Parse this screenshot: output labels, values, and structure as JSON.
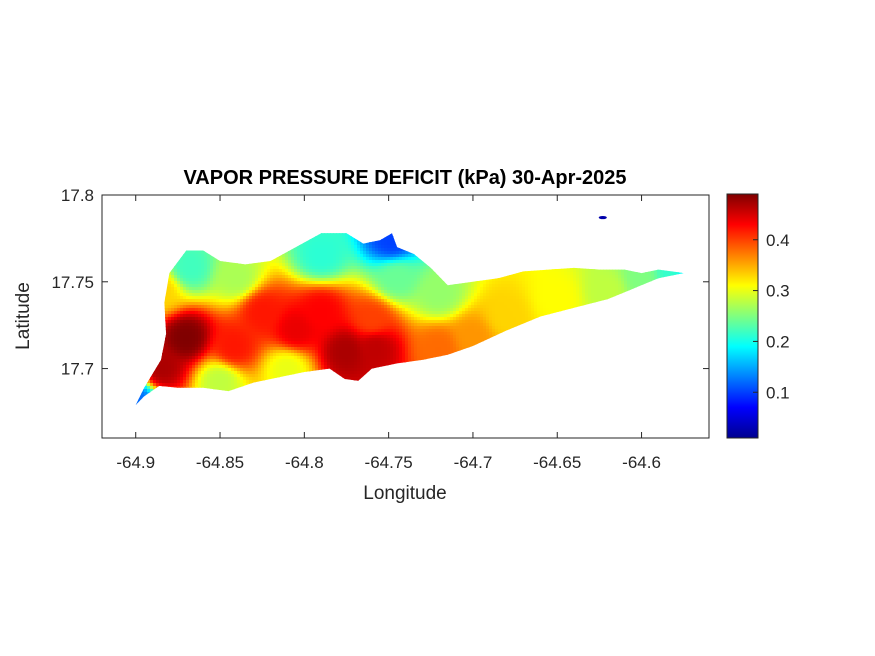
{
  "chart_data": {
    "type": "heatmap",
    "title": "VAPOR PRESSURE DEFICIT (kPa) 30-Apr-2025",
    "xlabel": "Longitude",
    "ylabel": "Latitude",
    "xlim": [
      -64.92,
      -64.56
    ],
    "ylim": [
      17.66,
      17.8
    ],
    "xticks": [
      -64.9,
      -64.85,
      -64.8,
      -64.75,
      -64.7,
      -64.65,
      -64.6
    ],
    "xtick_labels": [
      "-64.9",
      "-64.85",
      "-64.8",
      "-64.75",
      "-64.7",
      "-64.65",
      "-64.6"
    ],
    "yticks": [
      17.7,
      17.75,
      17.8
    ],
    "ytick_labels": [
      "17.7",
      "17.75",
      "17.8"
    ],
    "colorbar": {
      "colormap": "jet",
      "range": [
        0.01,
        0.49
      ],
      "ticks": [
        0.1,
        0.2,
        0.3,
        0.4
      ],
      "tick_labels": [
        "0.1",
        "0.2",
        "0.3",
        "0.4"
      ]
    },
    "grid": false,
    "island_outline": [
      [
        -64.88,
        17.755
      ],
      [
        -64.87,
        17.768
      ],
      [
        -64.86,
        17.768
      ],
      [
        -64.85,
        17.762
      ],
      [
        -64.835,
        17.76
      ],
      [
        -64.82,
        17.762
      ],
      [
        -64.805,
        17.77
      ],
      [
        -64.79,
        17.778
      ],
      [
        -64.775,
        17.778
      ],
      [
        -64.765,
        17.772
      ],
      [
        -64.755,
        17.774
      ],
      [
        -64.748,
        17.778
      ],
      [
        -64.745,
        17.77
      ],
      [
        -64.735,
        17.766
      ],
      [
        -64.725,
        17.758
      ],
      [
        -64.715,
        17.748
      ],
      [
        -64.7,
        17.75
      ],
      [
        -64.685,
        17.752
      ],
      [
        -64.67,
        17.756
      ],
      [
        -64.655,
        17.757
      ],
      [
        -64.64,
        17.758
      ],
      [
        -64.625,
        17.757
      ],
      [
        -64.61,
        17.757
      ],
      [
        -64.6,
        17.755
      ],
      [
        -64.59,
        17.757
      ],
      [
        -64.582,
        17.756
      ],
      [
        -64.575,
        17.755
      ],
      [
        -64.59,
        17.752
      ],
      [
        -64.605,
        17.746
      ],
      [
        -64.62,
        17.74
      ],
      [
        -64.64,
        17.735
      ],
      [
        -64.66,
        17.73
      ],
      [
        -64.68,
        17.722
      ],
      [
        -64.7,
        17.713
      ],
      [
        -64.715,
        17.708
      ],
      [
        -64.73,
        17.705
      ],
      [
        -64.745,
        17.703
      ],
      [
        -64.76,
        17.7
      ],
      [
        -64.768,
        17.693
      ],
      [
        -64.776,
        17.694
      ],
      [
        -64.785,
        17.7
      ],
      [
        -64.8,
        17.698
      ],
      [
        -64.815,
        17.695
      ],
      [
        -64.83,
        17.692
      ],
      [
        -64.845,
        17.687
      ],
      [
        -64.86,
        17.689
      ],
      [
        -64.875,
        17.689
      ],
      [
        -64.886,
        17.69
      ],
      [
        -64.895,
        17.684
      ],
      [
        -64.9,
        17.679
      ],
      [
        -64.895,
        17.689
      ],
      [
        -64.885,
        17.705
      ],
      [
        -64.882,
        17.72
      ],
      [
        -64.883,
        17.738
      ]
    ],
    "islets": [
      {
        "lon": -64.623,
        "lat": 17.787,
        "value": 0.03
      }
    ],
    "value_centers": [
      {
        "lon": -64.87,
        "lat": 17.718,
        "value": 0.49
      },
      {
        "lon": -64.885,
        "lat": 17.7,
        "value": 0.47
      },
      {
        "lon": -64.842,
        "lat": 17.712,
        "value": 0.42
      },
      {
        "lon": -64.825,
        "lat": 17.733,
        "value": 0.42
      },
      {
        "lon": -64.805,
        "lat": 17.722,
        "value": 0.44
      },
      {
        "lon": -64.79,
        "lat": 17.733,
        "value": 0.43
      },
      {
        "lon": -64.775,
        "lat": 17.71,
        "value": 0.47
      },
      {
        "lon": -64.758,
        "lat": 17.712,
        "value": 0.46
      },
      {
        "lon": -64.76,
        "lat": 17.728,
        "value": 0.4
      },
      {
        "lon": -64.72,
        "lat": 17.712,
        "value": 0.38
      },
      {
        "lon": -64.7,
        "lat": 17.718,
        "value": 0.36
      },
      {
        "lon": -64.68,
        "lat": 17.73,
        "value": 0.33
      },
      {
        "lon": -64.65,
        "lat": 17.74,
        "value": 0.31
      },
      {
        "lon": -64.62,
        "lat": 17.745,
        "value": 0.28
      },
      {
        "lon": -64.6,
        "lat": 17.752,
        "value": 0.25
      },
      {
        "lon": -64.58,
        "lat": 17.755,
        "value": 0.22
      },
      {
        "lon": -64.72,
        "lat": 17.743,
        "value": 0.26
      },
      {
        "lon": -64.745,
        "lat": 17.752,
        "value": 0.24
      },
      {
        "lon": -64.79,
        "lat": 17.765,
        "value": 0.21
      },
      {
        "lon": -64.868,
        "lat": 17.758,
        "value": 0.22
      },
      {
        "lon": -64.84,
        "lat": 17.752,
        "value": 0.27
      },
      {
        "lon": -64.885,
        "lat": 17.745,
        "value": 0.33
      },
      {
        "lon": -64.85,
        "lat": 17.693,
        "value": 0.28
      },
      {
        "lon": -64.81,
        "lat": 17.7,
        "value": 0.3
      },
      {
        "lon": -64.9,
        "lat": 17.682,
        "value": 0.12
      },
      {
        "lon": -64.748,
        "lat": 17.774,
        "value": 0.1
      },
      {
        "lon": -64.576,
        "lat": 17.755,
        "value": 0.18
      }
    ]
  }
}
